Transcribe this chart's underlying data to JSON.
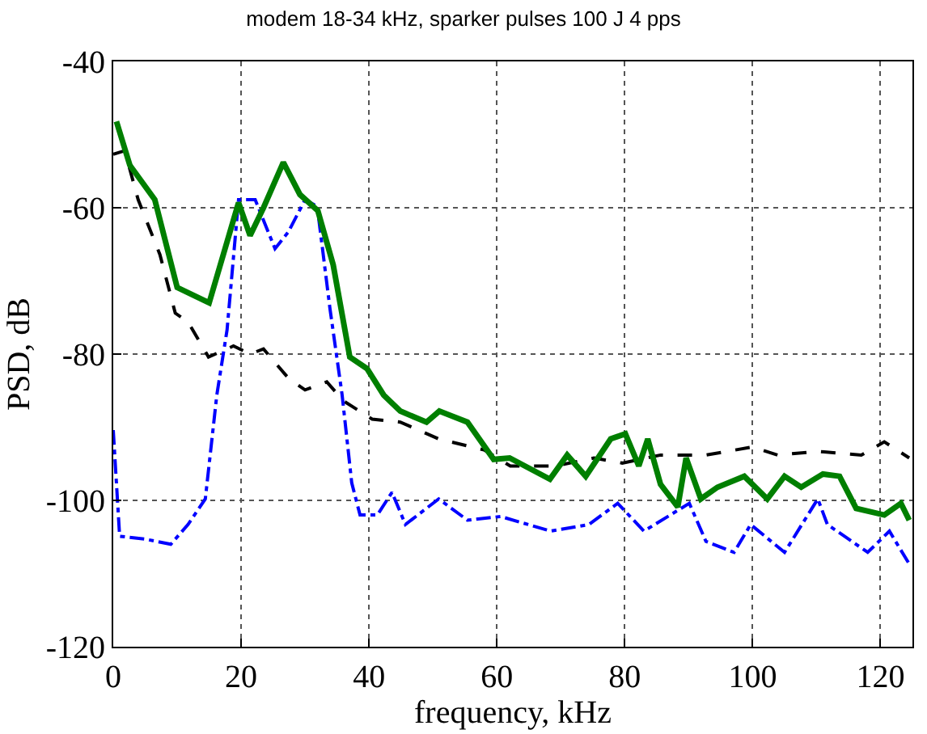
{
  "chart_data": {
    "type": "line",
    "title": "modem 18-34 kHz, sparker pulses 100 J 4 pps",
    "xlabel": "frequency, kHz",
    "ylabel": "PSD, dB",
    "xlim": [
      0,
      125
    ],
    "ylim": [
      -120,
      -40
    ],
    "xticks": [
      0,
      20,
      40,
      60,
      80,
      100,
      120
    ],
    "yticks": [
      -120,
      -100,
      -80,
      -60,
      -40
    ],
    "grid": true,
    "marker": "none",
    "series": [
      {
        "color": "#000000",
        "line_style": "dashed",
        "x": [
          0,
          1.8,
          3.9,
          7.3,
          9.7,
          11.7,
          14.9,
          18.8,
          21.4,
          23.5,
          27.4,
          30,
          33.4,
          36,
          40.5,
          44.9,
          50.9,
          58,
          62.1,
          69.2,
          75.2,
          79.6,
          85.6,
          92.7,
          100,
          103.9,
          110.2,
          117,
          120.6,
          124.5
        ],
        "values": [
          -52.7,
          -52.2,
          -58.9,
          -66.4,
          -74.4,
          -75.6,
          -80.4,
          -78.9,
          -80,
          -79.3,
          -83.3,
          -84.9,
          -83.8,
          -86.4,
          -88.9,
          -89.3,
          -91.6,
          -93.1,
          -95.3,
          -95.3,
          -94.2,
          -94.9,
          -93.8,
          -93.8,
          -92.7,
          -93.8,
          -93.3,
          -93.8,
          -92,
          -94.2
        ]
      },
      {
        "color": "#0000ff",
        "line_style": "dashdot",
        "x": [
          0,
          1,
          5,
          9,
          11.7,
          14.4,
          16.2,
          17.8,
          19.6,
          22.2,
          25.3,
          27.4,
          30,
          31.9,
          33.9,
          35.8,
          37.3,
          38.6,
          41.3,
          43.6,
          45.7,
          50.9,
          55.4,
          60.6,
          68.4,
          74.4,
          78.9,
          83,
          90.1,
          92.7,
          97.1,
          99.7,
          105,
          110.2,
          111.7,
          118,
          121.4,
          124.5
        ],
        "values": [
          -90.4,
          -104.9,
          -105.3,
          -106,
          -103.3,
          -99.8,
          -85.6,
          -76.7,
          -58.9,
          -58.9,
          -65.6,
          -63.3,
          -58.9,
          -59.8,
          -73.8,
          -85.6,
          -97.6,
          -102,
          -102,
          -98.9,
          -103.3,
          -99.8,
          -102.7,
          -102.2,
          -104.2,
          -103.3,
          -100.4,
          -104.2,
          -100.4,
          -105.6,
          -107.1,
          -103.3,
          -107.1,
          -99.8,
          -103.3,
          -107.1,
          -104.2,
          -108.7
        ]
      },
      {
        "color": "#007f00",
        "line_style": "solid",
        "x": [
          0.5,
          2.6,
          6.5,
          10,
          15,
          19.6,
          21.4,
          23.5,
          26.6,
          29.2,
          32,
          34.4,
          37,
          39.7,
          42.3,
          44.9,
          49,
          51,
          55.4,
          59.5,
          62,
          68.3,
          71,
          73.9,
          77.8,
          80.1,
          82.2,
          83.6,
          85.6,
          88.3,
          89.6,
          91.9,
          94.5,
          98.7,
          102.3,
          105,
          107.6,
          111,
          113.6,
          116.2,
          120.6,
          123.2,
          124.5
        ],
        "values": [
          -48.2,
          -54.2,
          -58.9,
          -70.9,
          -73,
          -59.3,
          -63.8,
          -60,
          -53.8,
          -58.2,
          -60.4,
          -67.8,
          -80.4,
          -82,
          -85.6,
          -87.8,
          -89.3,
          -87.8,
          -89.3,
          -94.4,
          -94.2,
          -97.1,
          -93.8,
          -96.7,
          -91.6,
          -90.9,
          -95.3,
          -91.6,
          -97.8,
          -100.9,
          -94.2,
          -99.8,
          -98.2,
          -96.7,
          -99.8,
          -96.7,
          -98.2,
          -96.4,
          -96.7,
          -101.1,
          -102,
          -100.4,
          -102.7
        ]
      }
    ]
  }
}
